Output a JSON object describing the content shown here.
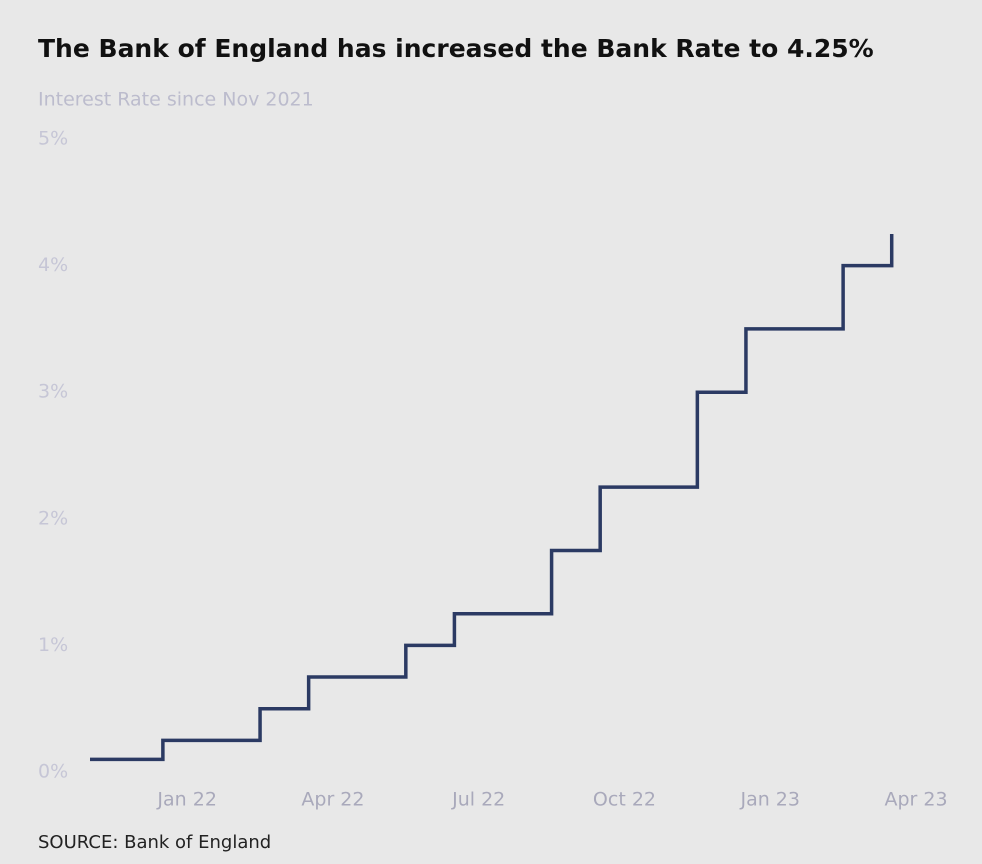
{
  "chart_data": {
    "type": "step",
    "title": "The Bank of England has increased the Bank Rate to 4.25%",
    "subtitle": "Interest Rate since Nov 2021",
    "source": "SOURCE: Bank of England",
    "x": [
      "2021-11",
      "2021-12",
      "2022-02",
      "2022-03",
      "2022-05",
      "2022-06",
      "2022-08",
      "2022-09",
      "2022-11",
      "2022-12",
      "2023-02",
      "2023-03"
    ],
    "series": [
      {
        "name": "Bank Rate",
        "color": "#2b3a63",
        "values": [
          0.1,
          0.25,
          0.5,
          0.75,
          1,
          1.25,
          1.75,
          2.25,
          3,
          3.5,
          4,
          4.25
        ]
      }
    ],
    "xlim": [
      "2021-11",
      "2023-04"
    ],
    "xticks": [
      {
        "value": "2022-01",
        "label": "Jan 22"
      },
      {
        "value": "2022-04",
        "label": "Apr 22"
      },
      {
        "value": "2022-07",
        "label": "Jul 22"
      },
      {
        "value": "2022-10",
        "label": "Oct 22"
      },
      {
        "value": "2023-01",
        "label": "Jan 23"
      },
      {
        "value": "2023-04",
        "label": "Apr 23"
      }
    ],
    "ylim": [
      0,
      5
    ],
    "yticks": [
      {
        "value": 0,
        "label": "0%"
      },
      {
        "value": 1,
        "label": "1%"
      },
      {
        "value": 2,
        "label": "2%"
      },
      {
        "value": 3,
        "label": "3%"
      },
      {
        "value": 4,
        "label": "4%"
      },
      {
        "value": 5,
        "label": "5%"
      }
    ],
    "grid": false
  }
}
